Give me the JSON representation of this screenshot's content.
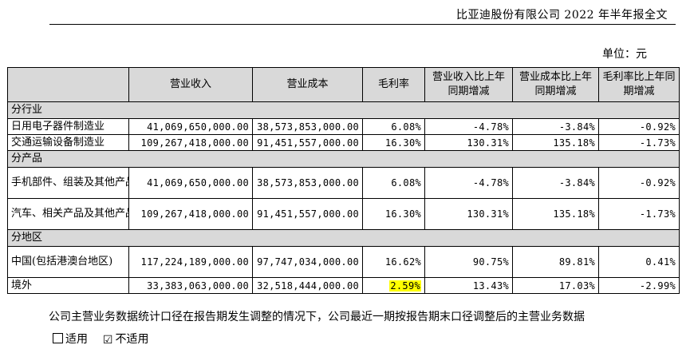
{
  "header": {
    "title": "比亚迪股份有限公司 2022 年半年报全文"
  },
  "unit": "单位：元",
  "table": {
    "columns": [
      "",
      "营业收入",
      "营业成本",
      "毛利率",
      "营业收入比上年同期增减",
      "营业成本比上年同期增减",
      "毛利率比上年同期增减"
    ],
    "sections": [
      {
        "title": "分行业",
        "rows": [
          {
            "label": "日用电子器件制造业",
            "values": [
              "41,069,650,000.00",
              "38,573,853,000.00",
              "6.08%",
              "-4.78%",
              "-3.84%",
              "-0.92%"
            ]
          },
          {
            "label": "交通运输设备制造业",
            "values": [
              "109,267,418,000.00",
              "91,451,557,000.00",
              "16.30%",
              "130.31%",
              "135.18%",
              "-1.73%"
            ]
          }
        ]
      },
      {
        "title": "分产品",
        "rows": [
          {
            "label": "手机部件、组装及其他产品",
            "values": [
              "41,069,650,000.00",
              "38,573,853,000.00",
              "6.08%",
              "-4.78%",
              "-3.84%",
              "-0.92%"
            ]
          },
          {
            "label": "汽车、相关产品及其他产品",
            "values": [
              "109,267,418,000.00",
              "91,451,557,000.00",
              "16.30%",
              "130.31%",
              "135.18%",
              "-1.73%"
            ]
          }
        ]
      },
      {
        "title": "分地区",
        "rows": [
          {
            "label": "中国(包括港澳台地区)",
            "values": [
              "117,224,189,000.00",
              "97,747,034,000.00",
              "16.62%",
              "90.75%",
              "89.81%",
              "0.41%"
            ]
          },
          {
            "label": "境外",
            "values": [
              "33,383,063,000.00",
              "32,518,444,000.00",
              "2.59%",
              "13.43%",
              "17.03%",
              "-2.99%"
            ]
          }
        ]
      }
    ]
  },
  "note": "公司主营业务数据统计口径在报告期发生调整的情况下，公司最近一期按报告期末口径调整后的主营业务数据",
  "choices": {
    "option1": "适用",
    "option2": "不适用",
    "option2_mark": "☑"
  }
}
